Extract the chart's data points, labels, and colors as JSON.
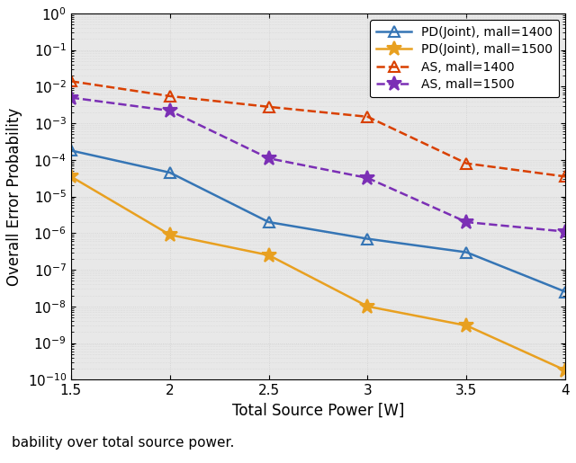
{
  "x": [
    1.5,
    2.0,
    2.5,
    3.0,
    3.5,
    4.0
  ],
  "pd_joint_1400": [
    0.00018,
    4.5e-05,
    2e-06,
    7e-07,
    3e-07,
    2.5e-08
  ],
  "pd_joint_1500": [
    3.5e-05,
    9e-07,
    2.5e-07,
    1e-08,
    3e-09,
    1.8e-10
  ],
  "as_1400": [
    0.014,
    0.0055,
    0.0028,
    0.0015,
    8e-05,
    3.5e-05
  ],
  "as_1500": [
    0.005,
    0.0022,
    0.00011,
    3.2e-05,
    2e-06,
    1.1e-06
  ],
  "ylim": [
    1e-10,
    1.0
  ],
  "xlim": [
    1.5,
    4.0
  ],
  "xlabel": "Total Source Power [W]",
  "ylabel": "Overall Error Probability",
  "legend_labels": [
    "PD(Joint), mall=1400",
    "PD(Joint), mall=1500",
    "AS, mall=1400",
    "AS, mall=1500"
  ],
  "colors": [
    "#3575b5",
    "#e8a020",
    "#d94000",
    "#7b2fb5"
  ],
  "line_styles": [
    "-",
    "-",
    "--",
    "--"
  ],
  "markers": [
    "^",
    "*",
    "^",
    "*"
  ],
  "marker_sizes": [
    8,
    12,
    8,
    12
  ],
  "linewidth": 1.8,
  "caption": "bability over total source power.",
  "grid_color": "#d0d0d0",
  "bg_color": "#e8e8e8"
}
